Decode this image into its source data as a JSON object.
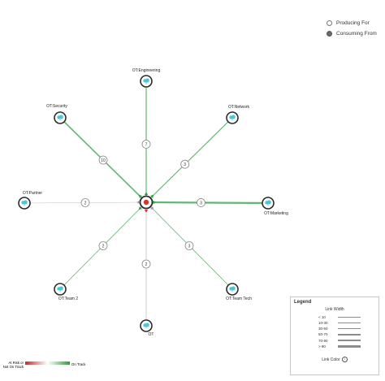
{
  "top_legend": {
    "producing": "Producing For",
    "consuming": "Consuming From"
  },
  "nodes": [
    {
      "id": "eng",
      "label": "OT:Engineering",
      "icon": "cloud-icon"
    },
    {
      "id": "net",
      "label": "OT:Network",
      "icon": "cloud-icon"
    },
    {
      "id": "mkt",
      "label": "OT:Marketing",
      "icon": "cloud-icon"
    },
    {
      "id": "tech",
      "label": "OT:Team Tech",
      "icon": "cloud-icon"
    },
    {
      "id": "ot",
      "label": "OT",
      "icon": "cloud-icon"
    },
    {
      "id": "team2",
      "label": "OT:Team 2",
      "icon": "cloud-icon"
    },
    {
      "id": "partner",
      "label": "OT:Partner",
      "icon": "cloud-icon"
    },
    {
      "id": "sec",
      "label": "OT:Security",
      "icon": "cloud-icon"
    }
  ],
  "links": [
    {
      "to": "eng",
      "count": "7"
    },
    {
      "to": "net",
      "count": "3"
    },
    {
      "to": "mkt",
      "count": "3"
    },
    {
      "to": "tech",
      "count": "3"
    },
    {
      "to": "ot",
      "count": "2"
    },
    {
      "to": "team2",
      "count": "2"
    },
    {
      "to": "partner",
      "count": "2"
    },
    {
      "to": "sec",
      "count": "10"
    }
  ],
  "center": {
    "icon": "target-icon"
  },
  "legend": {
    "title": "Legend",
    "width_title": "Link Width",
    "width_rows": [
      "< 10",
      "10-30",
      "30-50",
      "50-70",
      "70-90",
      "> 90"
    ],
    "color_title": "Link Color",
    "color_left": "At Risk or Not On Track",
    "color_right": "On Track"
  },
  "colors": {
    "link_green": "#2ea043",
    "link_gray": "#9a9a9a",
    "node_icon": "#45c8d8",
    "center_red": "#d9342b",
    "ring_dark": "#2b2b2b"
  }
}
